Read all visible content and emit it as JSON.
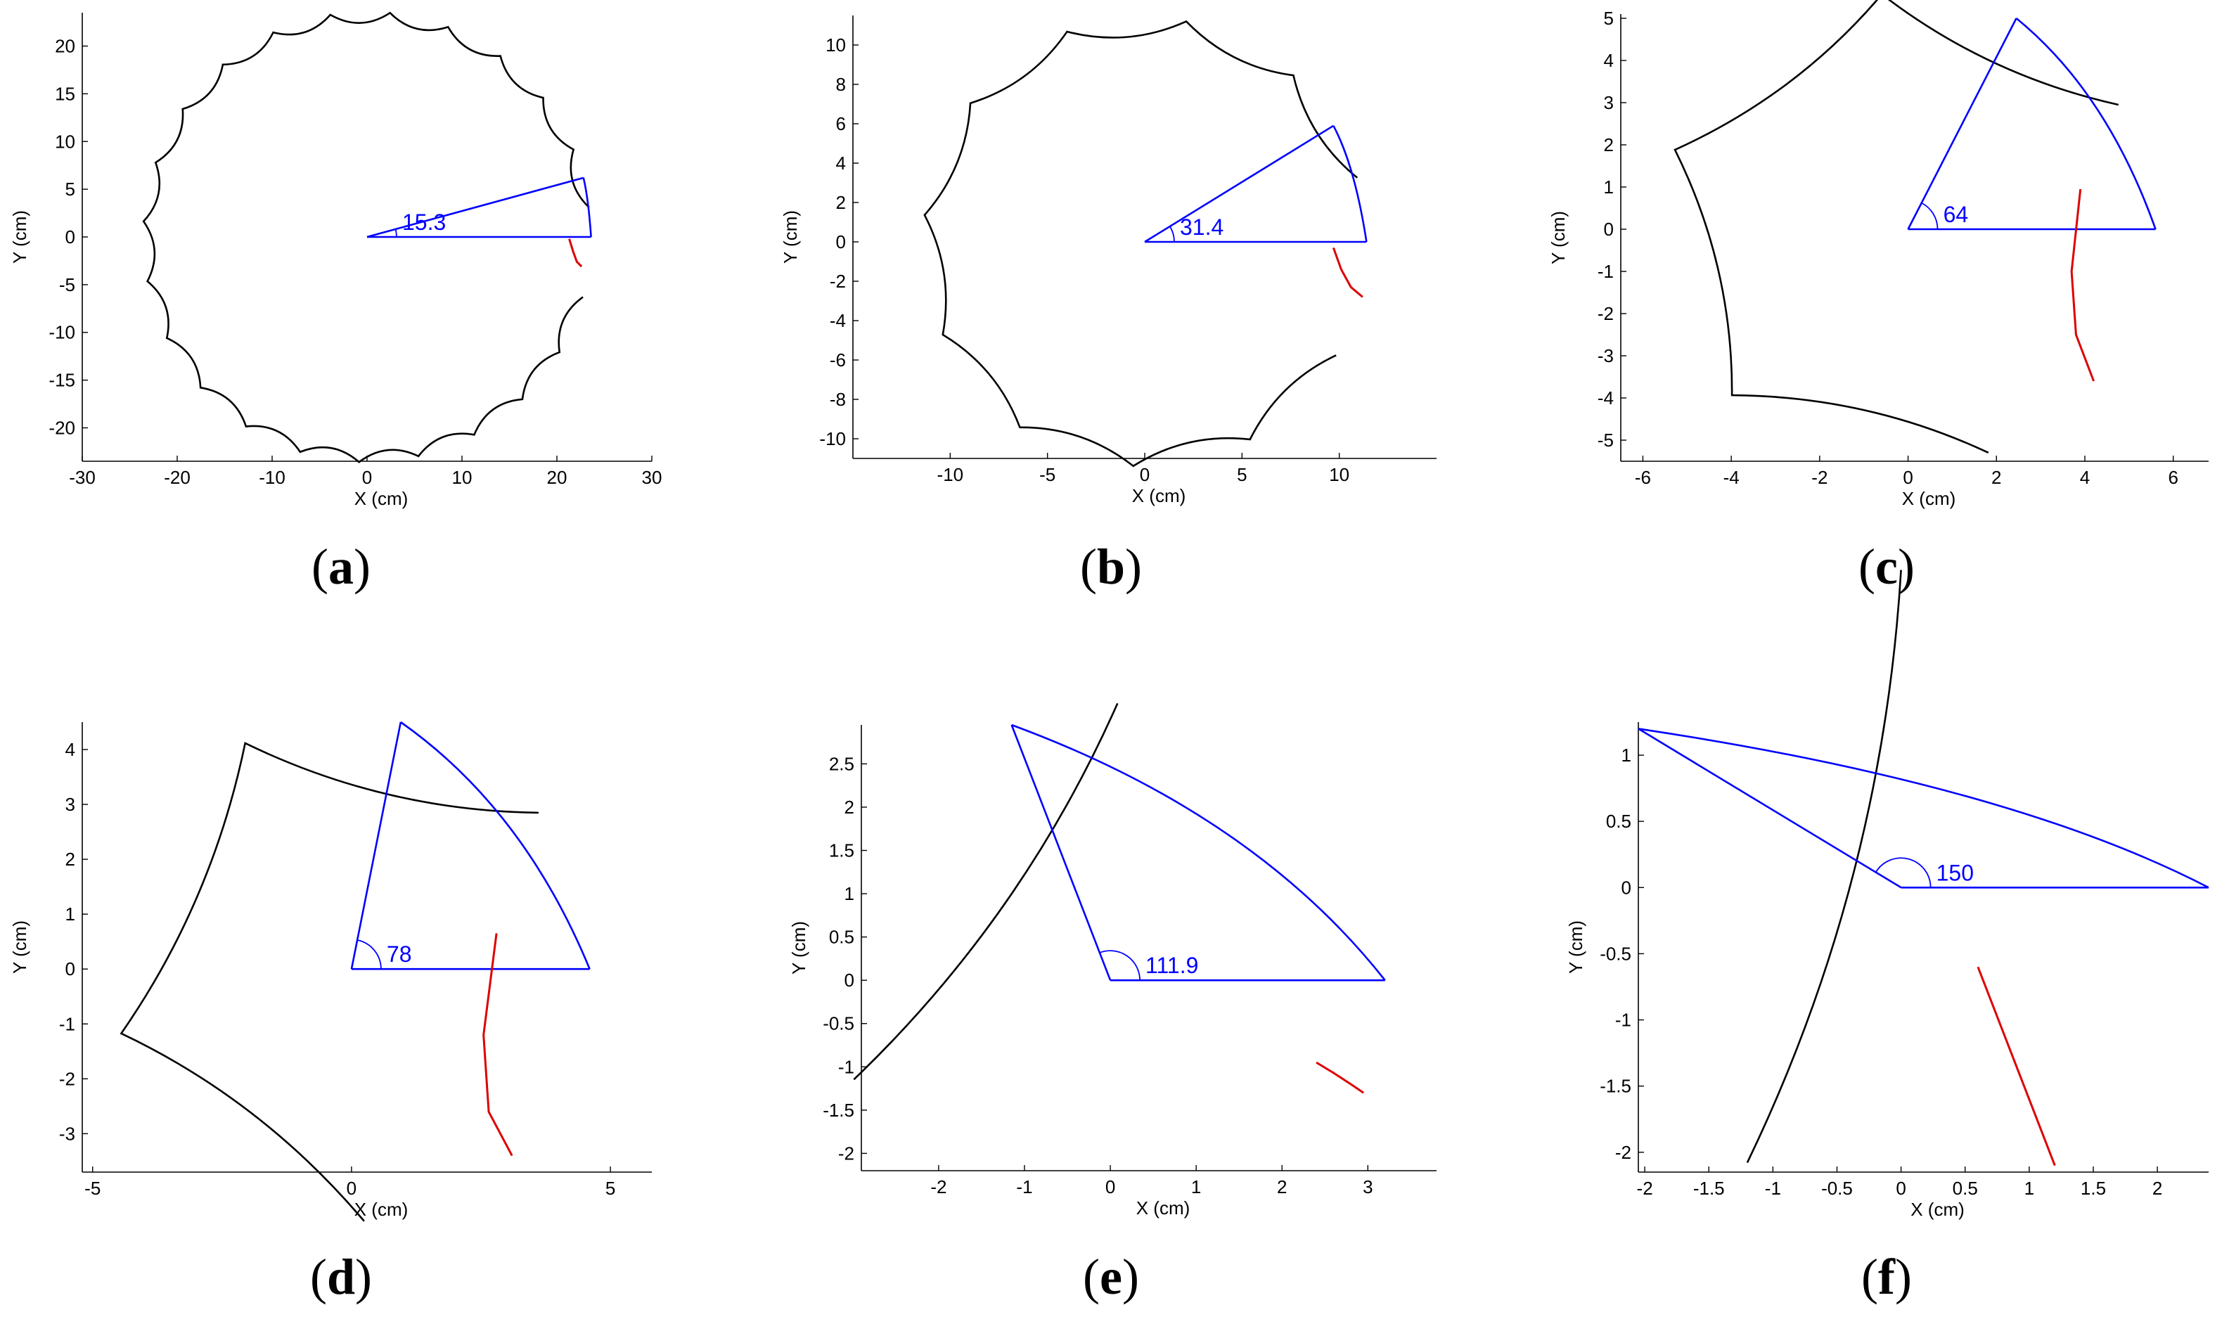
{
  "chart_data": [
    {
      "id": "a",
      "type": "line",
      "panel_label": "a",
      "xlabel": "X (cm)",
      "ylabel": "Y (cm)",
      "xlim": [
        -30,
        30
      ],
      "ylim": [
        -23.5,
        23.5
      ],
      "xticks": [
        -30,
        -20,
        -10,
        0,
        10,
        20,
        30
      ],
      "yticks": [
        -20,
        -15,
        -10,
        -5,
        0,
        5,
        10,
        15,
        20
      ],
      "angle_deg": 15.3,
      "angle_label": "15.3",
      "series": [
        {
          "name": "trajectory",
          "color": "#000000",
          "shape": "epicycloid-scalloped",
          "outer_radius": 23.6,
          "cusps": 23.5,
          "start_angle_deg": -7.8,
          "sweep_deg": 352
        },
        {
          "name": "rolling-arc",
          "color": "#0000ff",
          "tip": [
            22.8,
            6.2
          ],
          "base_end": [
            23.6,
            0
          ]
        },
        {
          "name": "next-arc",
          "color": "#dd0000",
          "x": [
            21.3,
            21.7,
            22.1,
            22.6
          ],
          "y": [
            -0.2,
            -1.5,
            -2.6,
            -3.1
          ]
        }
      ]
    },
    {
      "id": "b",
      "type": "line",
      "panel_label": "b",
      "xlabel": "X (cm)",
      "ylabel": "Y (cm)",
      "xlim": [
        -15,
        15
      ],
      "ylim": [
        -11,
        11.5
      ],
      "xticks": [
        -10,
        -5,
        0,
        5,
        10
      ],
      "yticks": [
        -10,
        -8,
        -6,
        -4,
        -2,
        0,
        2,
        4,
        6,
        8,
        10
      ],
      "angle_deg": 31.4,
      "angle_label": "31.4",
      "series": [
        {
          "name": "trajectory",
          "color": "#000000",
          "shape": "epicycloid-scalloped",
          "outer_radius": 11.4,
          "cusps": 11.5,
          "start_angle_deg": -14.7,
          "sweep_deg": 340
        },
        {
          "name": "rolling-arc",
          "color": "#0000ff",
          "tip": [
            9.7,
            5.9
          ],
          "base_end": [
            11.4,
            0
          ]
        },
        {
          "name": "next-arc",
          "color": "#dd0000",
          "x": [
            9.7,
            10.1,
            10.6,
            11.2
          ],
          "y": [
            -0.3,
            -1.4,
            -2.3,
            -2.8
          ]
        }
      ]
    },
    {
      "id": "c",
      "type": "line",
      "panel_label": "c",
      "xlabel": "X (cm)",
      "ylabel": "Y (cm)",
      "xlim": [
        -6.5,
        6.8
      ],
      "ylim": [
        -5.5,
        5.1
      ],
      "xticks": [
        -6,
        -4,
        -2,
        0,
        2,
        4,
        6
      ],
      "yticks": [
        -5,
        -4,
        -3,
        -2,
        -1,
        0,
        1,
        2,
        3,
        4,
        5
      ],
      "angle_deg": 64,
      "angle_label": "64",
      "series": [
        {
          "name": "trajectory",
          "color": "#000000",
          "shape": "epicycloid-scalloped",
          "outer_radius": 5.6,
          "cusps": 5.6,
          "start_angle_deg": -32.5,
          "sweep_deg": 310
        },
        {
          "name": "rolling-arc",
          "color": "#0000ff",
          "tip": [
            2.45,
            5.0
          ],
          "base_end": [
            5.6,
            0
          ]
        },
        {
          "name": "next-arc",
          "color": "#dd0000",
          "x": [
            3.9,
            3.7,
            3.8,
            4.2
          ],
          "y": [
            0.95,
            -1.0,
            -2.5,
            -3.6
          ]
        }
      ]
    },
    {
      "id": "d",
      "type": "line",
      "panel_label": "d",
      "xlabel": "X (cm)",
      "ylabel": "Y (cm)",
      "xlim": [
        -5.2,
        5.8
      ],
      "ylim": [
        -3.7,
        4.5
      ],
      "xticks": [
        -5,
        0,
        5
      ],
      "yticks": [
        -3,
        -2,
        -1,
        0,
        1,
        2,
        3,
        4
      ],
      "angle_deg": 78,
      "angle_label": "78",
      "series": [
        {
          "name": "trajectory",
          "color": "#000000",
          "shape": "epicycloid-scalloped",
          "outer_radius": 4.6,
          "cusps": 4.6,
          "start_angle_deg": -40,
          "sweep_deg": 290
        },
        {
          "name": "rolling-arc",
          "color": "#0000ff",
          "tip": [
            0.95,
            4.5
          ],
          "base_end": [
            4.6,
            0
          ]
        },
        {
          "name": "next-arc",
          "color": "#dd0000",
          "x": [
            2.8,
            2.55,
            2.65,
            3.1
          ],
          "y": [
            0.65,
            -1.2,
            -2.6,
            -3.4
          ]
        }
      ]
    },
    {
      "id": "e",
      "type": "line",
      "panel_label": "e",
      "xlabel": "X (cm)",
      "ylabel": "Y (cm)",
      "xlim": [
        -2.9,
        3.8
      ],
      "ylim": [
        -2.2,
        2.95
      ],
      "xticks": [
        -2,
        -1,
        0,
        1,
        2,
        3
      ],
      "yticks": [
        -2,
        -1.5,
        -1,
        -0.5,
        0,
        0.5,
        1,
        1.5,
        2,
        2.5
      ],
      "angle_deg": 111.9,
      "angle_label": "111.9",
      "series": [
        {
          "name": "trajectory",
          "color": "#000000",
          "shape": "epicycloid-scalloped",
          "outer_radius": 3.2,
          "cusps": 3.2,
          "start_angle_deg": -24,
          "sweep_deg": 220
        },
        {
          "name": "rolling-arc",
          "color": "#0000ff",
          "tip": [
            -1.15,
            2.95
          ],
          "base_end": [
            3.2,
            0
          ]
        },
        {
          "name": "next-arc",
          "color": "#dd0000",
          "x": [
            2.4,
            2.6,
            2.8,
            2.95
          ],
          "y": [
            -0.95,
            -1.07,
            -1.2,
            -1.3
          ]
        }
      ]
    },
    {
      "id": "f",
      "type": "line",
      "panel_label": "f",
      "xlabel": "X (cm)",
      "ylabel": "Y (cm)",
      "xlim": [
        -2.05,
        2.4
      ],
      "ylim": [
        -2.15,
        1.25
      ],
      "xticks": [
        -2,
        -1.5,
        -1,
        -0.5,
        0,
        0.5,
        1,
        1.5,
        2
      ],
      "yticks": [
        -2,
        -1.5,
        -1,
        -0.5,
        0,
        0.5,
        1
      ],
      "angle_deg": 150,
      "angle_label": "150",
      "series": [
        {
          "name": "trajectory",
          "color": "#000000",
          "shape": "epicycloid-scalloped",
          "outer_radius": 2.4,
          "cusps": 2.4,
          "start_angle_deg": -60,
          "sweep_deg": 210
        },
        {
          "name": "rolling-arc",
          "color": "#0000ff",
          "tip": [
            -2.05,
            1.2
          ],
          "base_end": [
            2.4,
            0
          ]
        },
        {
          "name": "next-arc",
          "color": "#dd0000",
          "x": [
            0.6,
            0.8,
            1.0,
            1.2
          ],
          "y": [
            -0.6,
            -1.1,
            -1.6,
            -2.1
          ]
        }
      ]
    }
  ]
}
